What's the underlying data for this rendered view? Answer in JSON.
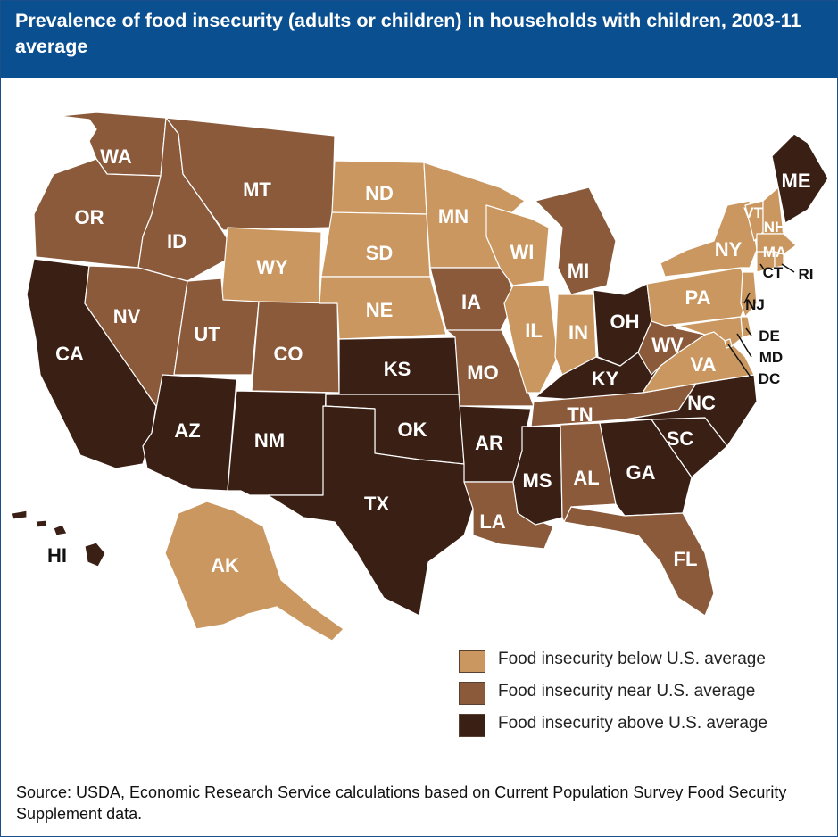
{
  "title": "Prevalence of food insecurity (adults or children) in households with children, 2003-11 average",
  "colors": {
    "below": "#c9975f",
    "near": "#8a5a3b",
    "above": "#3a1f14",
    "header": "#0a4f8f"
  },
  "legend": [
    {
      "category": "below",
      "label": "Food insecurity below U.S. average"
    },
    {
      "category": "near",
      "label": "Food insecurity near U.S. average"
    },
    {
      "category": "above",
      "label": "Food insecurity above U.S. average"
    }
  ],
  "states": {
    "WA": "near",
    "OR": "near",
    "CA": "above",
    "ID": "near",
    "NV": "near",
    "MT": "near",
    "WY": "below",
    "UT": "near",
    "AZ": "above",
    "CO": "near",
    "NM": "above",
    "ND": "below",
    "SD": "below",
    "NE": "below",
    "KS": "above",
    "OK": "above",
    "TX": "above",
    "MN": "below",
    "IA": "near",
    "MO": "near",
    "AR": "above",
    "LA": "near",
    "WI": "below",
    "IL": "below",
    "MI": "near",
    "IN": "below",
    "OH": "above",
    "KY": "above",
    "TN": "near",
    "MS": "above",
    "AL": "near",
    "GA": "above",
    "FL": "near",
    "SC": "above",
    "NC": "above",
    "VA": "below",
    "WV": "near",
    "PA": "below",
    "NY": "below",
    "VT": "below",
    "NH": "below",
    "ME": "above",
    "MA": "below",
    "CT": "below",
    "RI": "below",
    "NJ": "below",
    "DE": "below",
    "MD": "below",
    "DC": "below",
    "AK": "below",
    "HI": "above"
  },
  "labels": {
    "WA": "WA",
    "OR": "OR",
    "CA": "CA",
    "ID": "ID",
    "NV": "NV",
    "MT": "MT",
    "WY": "WY",
    "UT": "UT",
    "AZ": "AZ",
    "CO": "CO",
    "NM": "NM",
    "ND": "ND",
    "SD": "SD",
    "NE": "NE",
    "KS": "KS",
    "OK": "OK",
    "TX": "TX",
    "MN": "MN",
    "IA": "IA",
    "MO": "MO",
    "AR": "AR",
    "LA": "LA",
    "WI": "WI",
    "IL": "IL",
    "MI": "MI",
    "IN": "IN",
    "OH": "OH",
    "KY": "KY",
    "TN": "TN",
    "MS": "MS",
    "AL": "AL",
    "GA": "GA",
    "FL": "FL",
    "SC": "SC",
    "NC": "NC",
    "VA": "VA",
    "WV": "WV",
    "PA": "PA",
    "NY": "NY",
    "VT": "VT",
    "NH": "NH",
    "ME": "ME",
    "MA": "MA",
    "CT": "CT",
    "RI": "RI",
    "NJ": "NJ",
    "DE": "DE",
    "MD": "MD",
    "DC": "DC",
    "AK": "AK",
    "HI": "HI"
  },
  "source": "Source: USDA, Economic Research Service calculations based on Current Population Survey Food Security Supplement data."
}
